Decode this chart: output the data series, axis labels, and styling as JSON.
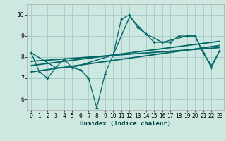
{
  "xlabel": "Humidex (Indice chaleur)",
  "bg_color": "#cce8e0",
  "grid_color": "#aacccc",
  "line_color": "#006666",
  "xlim": [
    -0.5,
    23.5
  ],
  "ylim": [
    5.5,
    10.5
  ],
  "yticks": [
    6,
    7,
    8,
    9,
    10
  ],
  "xticks": [
    0,
    1,
    2,
    3,
    4,
    5,
    6,
    7,
    8,
    9,
    10,
    11,
    12,
    13,
    14,
    15,
    16,
    17,
    18,
    19,
    20,
    21,
    22,
    23
  ],
  "series1_x": [
    0,
    1,
    2,
    3,
    4,
    5,
    6,
    7,
    8,
    9,
    10,
    11,
    12,
    13,
    14,
    15,
    16,
    17,
    18,
    19,
    20,
    21,
    22,
    23
  ],
  "series1_y": [
    8.2,
    7.3,
    7.0,
    7.5,
    7.9,
    7.5,
    7.4,
    7.0,
    5.6,
    7.2,
    8.1,
    9.8,
    10.0,
    9.4,
    9.1,
    8.7,
    8.7,
    8.7,
    9.0,
    9.0,
    9.0,
    8.2,
    7.5,
    8.3
  ],
  "series2_x": [
    0,
    3,
    5,
    10,
    12,
    14,
    16,
    19,
    20,
    21,
    22,
    23
  ],
  "series2_y": [
    8.2,
    7.5,
    7.5,
    8.1,
    9.9,
    9.1,
    8.7,
    9.0,
    9.0,
    8.2,
    7.6,
    8.3
  ],
  "series3_x": [
    0,
    23
  ],
  "series3_y": [
    7.3,
    8.55
  ],
  "series4_x": [
    0,
    23
  ],
  "series4_y": [
    7.6,
    8.75
  ],
  "series5_x": [
    0,
    23
  ],
  "series5_y": [
    7.8,
    8.45
  ]
}
